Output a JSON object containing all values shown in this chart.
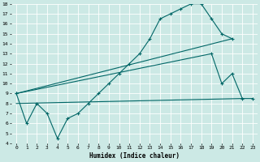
{
  "xlabel": "Humidex (Indice chaleur)",
  "xlim": [
    -0.5,
    23.5
  ],
  "ylim": [
    4,
    18
  ],
  "yticks": [
    4,
    5,
    6,
    7,
    8,
    9,
    10,
    11,
    12,
    13,
    14,
    15,
    16,
    17,
    18
  ],
  "xticks": [
    0,
    1,
    2,
    3,
    4,
    5,
    6,
    7,
    8,
    9,
    10,
    11,
    12,
    13,
    14,
    15,
    16,
    17,
    18,
    19,
    20,
    21,
    22,
    23
  ],
  "bg_color": "#cce9e5",
  "line_color": "#006666",
  "grid_color": "#ffffff",
  "line1_x": [
    0,
    1,
    2,
    3,
    4,
    5,
    6,
    7,
    8,
    9,
    10,
    11,
    12,
    13,
    14,
    15,
    16,
    17,
    18,
    19,
    20,
    21
  ],
  "line1_y": [
    9,
    6,
    8,
    7,
    4.5,
    6.5,
    7,
    8,
    9,
    10,
    11,
    12,
    13,
    14.5,
    16.5,
    17,
    17.5,
    18,
    18,
    16.5,
    15,
    14.5
  ],
  "line2_x": [
    0,
    19,
    20,
    21,
    22,
    23
  ],
  "line2_y": [
    9,
    13,
    10,
    11,
    8.5,
    8.5
  ],
  "line3_x": [
    0,
    21
  ],
  "line3_y": [
    9,
    14.5
  ],
  "line4_x": [
    0,
    22
  ],
  "line4_y": [
    8,
    8.5
  ]
}
